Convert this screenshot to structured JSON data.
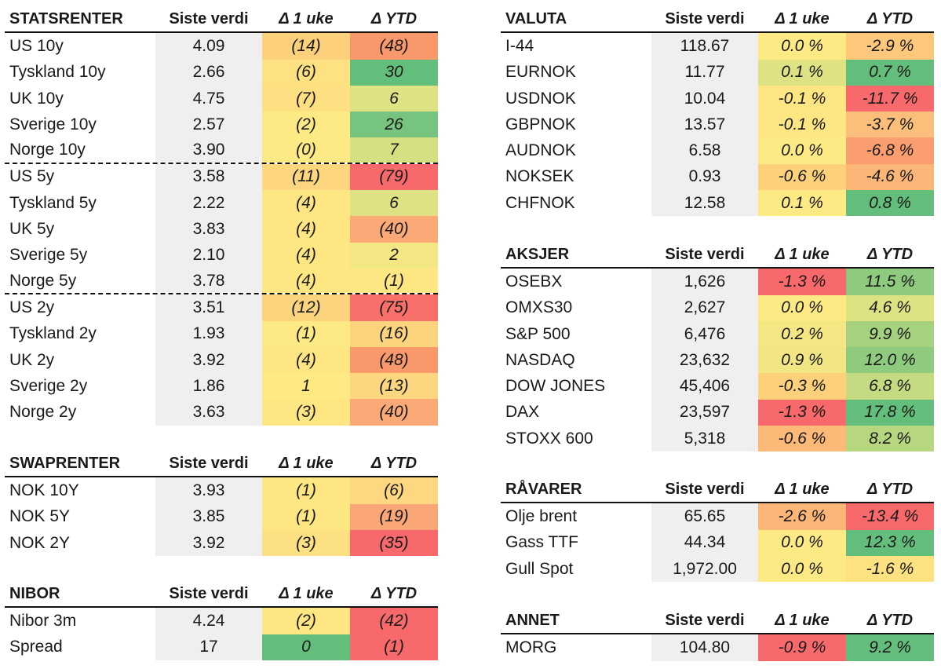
{
  "headers": {
    "value": "Siste verdi",
    "week": "Δ 1 uke",
    "ytd": "Δ YTD"
  },
  "sections": {
    "statsrenter": {
      "title": "STATSRENTER",
      "rows": [
        {
          "name": "US 10y",
          "value": "4.09",
          "week": "(14)",
          "week_color": "#fdd17c",
          "ytd": "(48)",
          "ytd_color": "#f9986b"
        },
        {
          "name": "Tyskland 10y",
          "value": "2.66",
          "week": "(6)",
          "week_color": "#fee282",
          "ytd": "30",
          "ytd_color": "#63be7b"
        },
        {
          "name": "UK 10y",
          "value": "4.75",
          "week": "(7)",
          "week_color": "#fedf81",
          "ytd": "6",
          "ytd_color": "#dee283"
        },
        {
          "name": "Sverige 10y",
          "value": "2.57",
          "week": "(2)",
          "week_color": "#feea84",
          "ytd": "26",
          "ytd_color": "#76c47d"
        },
        {
          "name": "Norge 10y",
          "value": "3.90",
          "week": "(0)",
          "week_color": "#feea84",
          "ytd": "7",
          "ytd_color": "#d6e082"
        },
        {
          "name": "US 5y",
          "value": "3.58",
          "week": "(11)",
          "week_color": "#fdd67f",
          "ytd": "(79)",
          "ytd_color": "#f8696b"
        },
        {
          "name": "Tyskland 5y",
          "value": "2.22",
          "week": "(4)",
          "week_color": "#fee683",
          "ytd": "6",
          "ytd_color": "#dee283"
        },
        {
          "name": "UK 5y",
          "value": "3.83",
          "week": "(4)",
          "week_color": "#fee683",
          "ytd": "(40)",
          "ytd_color": "#fba976"
        },
        {
          "name": "Sverige 5y",
          "value": "2.10",
          "week": "(4)",
          "week_color": "#fee683",
          "ytd": "2",
          "ytd_color": "#f3e783"
        },
        {
          "name": "Norge 5y",
          "value": "3.78",
          "week": "(4)",
          "week_color": "#fee683",
          "ytd": "(1)",
          "ytd_color": "#fee683"
        },
        {
          "name": "US 2y",
          "value": "3.51",
          "week": "(12)",
          "week_color": "#fdd47e",
          "ytd": "(75)",
          "ytd_color": "#f87069"
        },
        {
          "name": "Tyskland 2y",
          "value": "1.93",
          "week": "(1)",
          "week_color": "#feea84",
          "ytd": "(16)",
          "ytd_color": "#fdd47e"
        },
        {
          "name": "UK 2y",
          "value": "3.92",
          "week": "(4)",
          "week_color": "#fee683",
          "ytd": "(48)",
          "ytd_color": "#f9986b"
        },
        {
          "name": "Sverige 2y",
          "value": "1.86",
          "week": "1",
          "week_color": "#fee983",
          "ytd": "(13)",
          "ytd_color": "#fdd77f"
        },
        {
          "name": "Norge 2y",
          "value": "3.63",
          "week": "(3)",
          "week_color": "#fee683",
          "ytd": "(40)",
          "ytd_color": "#fba976"
        }
      ]
    },
    "swaprenter": {
      "title": "SWAPRENTER",
      "rows": [
        {
          "name": "NOK 10Y",
          "value": "3.93",
          "week": "(1)",
          "week_color": "#fee683",
          "ytd": "(6)",
          "ytd_color": "#fed880"
        },
        {
          "name": "NOK 5Y",
          "value": "3.85",
          "week": "(1)",
          "week_color": "#fee683",
          "ytd": "(19)",
          "ytd_color": "#fba676"
        },
        {
          "name": "NOK 2Y",
          "value": "3.92",
          "week": "(3)",
          "week_color": "#fde082",
          "ytd": "(35)",
          "ytd_color": "#f8696b"
        }
      ]
    },
    "nibor": {
      "title": "NIBOR",
      "rows": [
        {
          "name": "Nibor 3m",
          "value": "4.24",
          "week": "(2)",
          "week_color": "#fee683",
          "ytd": "(42)",
          "ytd_color": "#f8696b"
        },
        {
          "name": "Spread",
          "value": "17",
          "week": "0",
          "week_color": "#63be7b",
          "ytd": "(1)",
          "ytd_color": "#f8696b"
        }
      ]
    },
    "valuta": {
      "title": "VALUTA",
      "rows": [
        {
          "name": "I-44",
          "value": "118.67",
          "week": "0.0 %",
          "week_color": "#feea84",
          "ytd": "-2.9 %",
          "ytd_color": "#fdc87c"
        },
        {
          "name": "EURNOK",
          "value": "11.77",
          "week": "0.1 %",
          "week_color": "#dee283",
          "ytd": "0.7 %",
          "ytd_color": "#63be7b"
        },
        {
          "name": "USDNOK",
          "value": "10.04",
          "week": "-0.1 %",
          "week_color": "#fee683",
          "ytd": "-11.7 %",
          "ytd_color": "#f8696b"
        },
        {
          "name": "GBPNOK",
          "value": "13.57",
          "week": "-0.1 %",
          "week_color": "#fee683",
          "ytd": "-3.7 %",
          "ytd_color": "#fcbf7b"
        },
        {
          "name": "AUDNOK",
          "value": "6.58",
          "week": "0.0 %",
          "week_color": "#feea84",
          "ytd": "-6.8 %",
          "ytd_color": "#fa9e70"
        },
        {
          "name": "NOKSEK",
          "value": "0.93",
          "week": "-0.6 %",
          "week_color": "#fdd17c",
          "ytd": "-4.6 %",
          "ytd_color": "#fbb678"
        },
        {
          "name": "CHFNOK",
          "value": "12.58",
          "week": "0.1 %",
          "week_color": "#feea84",
          "ytd": "0.8 %",
          "ytd_color": "#63be7b"
        }
      ]
    },
    "aksjer": {
      "title": "AKSJER",
      "rows": [
        {
          "name": "OSEBX",
          "value": "1,626",
          "week": "-1.3 %",
          "week_color": "#f8696b",
          "ytd": "11.5 %",
          "ytd_color": "#8fcb7e"
        },
        {
          "name": "OMXS30",
          "value": "2,627",
          "week": "0.0 %",
          "week_color": "#feea84",
          "ytd": "4.6 %",
          "ytd_color": "#dde283"
        },
        {
          "name": "S&P 500",
          "value": "6,476",
          "week": "0.2 %",
          "week_color": "#f4e783",
          "ytd": "9.9 %",
          "ytd_color": "#a6d27f"
        },
        {
          "name": "NASDAQ",
          "value": "23,632",
          "week": "0.9 %",
          "week_color": "#f1e683",
          "ytd": "12.0 %",
          "ytd_color": "#8ecb7e"
        },
        {
          "name": "DOW JONES",
          "value": "45,406",
          "week": "-0.3 %",
          "week_color": "#fdd17c",
          "ytd": "6.8 %",
          "ytd_color": "#c5db81"
        },
        {
          "name": "DAX",
          "value": "23,597",
          "week": "-1.3 %",
          "week_color": "#f8696b",
          "ytd": "17.8 %",
          "ytd_color": "#63be7b"
        },
        {
          "name": "STOXX 600",
          "value": "5,318",
          "week": "-0.6 %",
          "week_color": "#fcb978",
          "ytd": "8.2 %",
          "ytd_color": "#b6d680"
        }
      ]
    },
    "ravarer": {
      "title": "RÅVARER",
      "rows": [
        {
          "name": "Olje brent",
          "value": "65.65",
          "week": "-2.6 %",
          "week_color": "#fbb678",
          "ytd": "-13.4 %",
          "ytd_color": "#f8696b"
        },
        {
          "name": "Gass TTF",
          "value": "44.34",
          "week": "0.0 %",
          "week_color": "#feea84",
          "ytd": "12.3 %",
          "ytd_color": "#63be7b"
        },
        {
          "name": "Gull Spot",
          "value": "1,972.00",
          "week": "0.0 %",
          "week_color": "#feea84",
          "ytd": "-1.6 %",
          "ytd_color": "#fee282"
        }
      ]
    },
    "annet": {
      "title": "ANNET",
      "rows": [
        {
          "name": "MORG",
          "value": "104.80",
          "week": "-0.9 %",
          "week_color": "#f8696b",
          "ytd": "9.2 %",
          "ytd_color": "#63be7b"
        }
      ]
    }
  }
}
